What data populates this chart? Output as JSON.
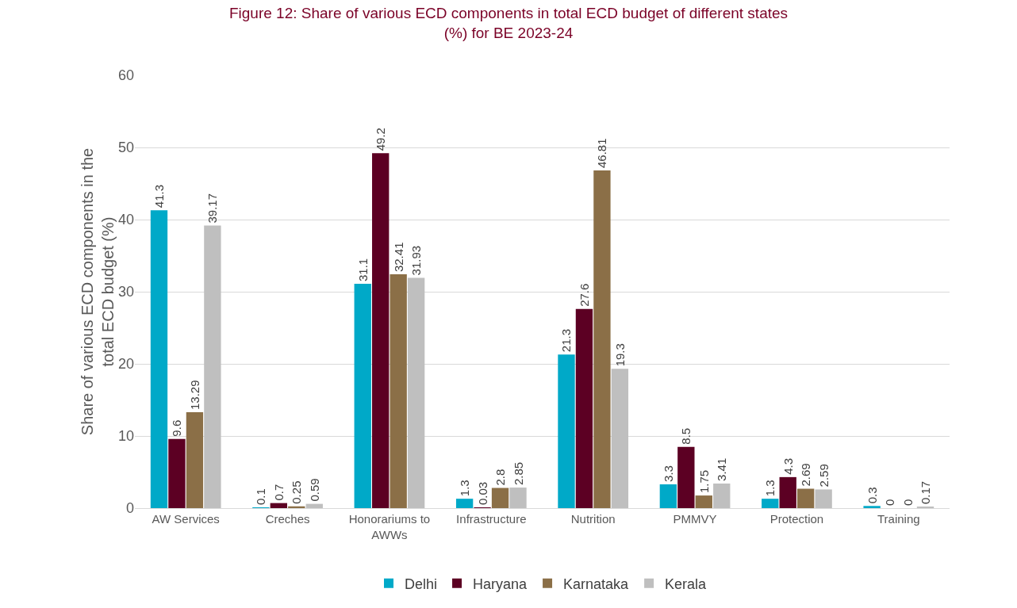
{
  "chart_data": {
    "type": "bar",
    "title": "Figure 12: Share of various ECD components in total ECD budget of different states (%) for BE 2023-24",
    "ylabel": "Share of various ECD components in the total ECD budget (%)",
    "categories": [
      "AW Services",
      "Creches",
      "Honorariums to AWWs",
      "Infrastructure",
      "Nutrition",
      "PMMVY",
      "Protection",
      "Training"
    ],
    "series": [
      {
        "name": "Delhi",
        "color": "#00a9c8",
        "values": [
          41.3,
          0.1,
          31.1,
          1.3,
          21.3,
          3.3,
          1.3,
          0.3
        ]
      },
      {
        "name": "Haryana",
        "color": "#5c0023",
        "values": [
          9.6,
          0.7,
          49.2,
          0.03,
          27.6,
          8.5,
          4.3,
          0
        ]
      },
      {
        "name": "Karnataka",
        "color": "#8b6f47",
        "values": [
          13.29,
          0.25,
          32.41,
          2.8,
          46.81,
          1.75,
          2.69,
          0
        ]
      },
      {
        "name": "Kerala",
        "color": "#bfbfbf",
        "values": [
          39.17,
          0.59,
          31.93,
          2.85,
          19.3,
          3.41,
          2.59,
          0.17
        ]
      }
    ],
    "ylim": [
      0,
      60
    ],
    "yticks": [
      0,
      10,
      20,
      30,
      40,
      50,
      60
    ],
    "grid": "y",
    "legend": "bottom",
    "data_labels": true
  }
}
